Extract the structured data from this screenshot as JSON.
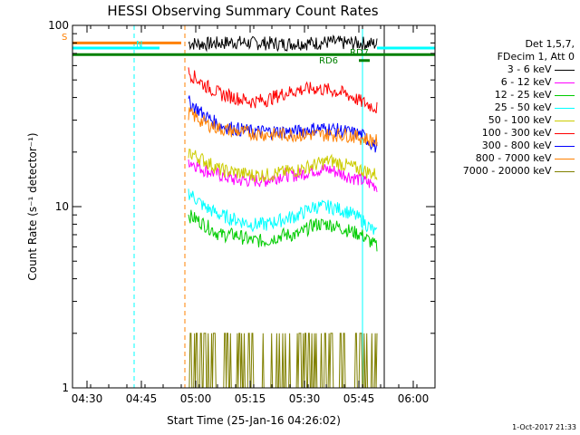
{
  "chart_data": {
    "type": "line",
    "title": "HESSI Observing Summary Count Rates",
    "xlabel": "Start Time (25-Jan-16 04:26:02)",
    "ylabel": "Count Rate (s⁻¹ detector⁻¹)",
    "yscale": "log",
    "ylim": [
      1,
      100
    ],
    "xlim_minutes": [
      "04:26",
      "06:06"
    ],
    "x_ticks": [
      "04:30",
      "04:45",
      "05:00",
      "05:15",
      "05:30",
      "05:45",
      "06:00"
    ],
    "y_ticks": [
      "1",
      "10",
      "100"
    ],
    "legend_header": [
      "Det 1,5,7,",
      "FDecim 1, Att 0"
    ],
    "series": [
      {
        "name": "3 - 6 keV",
        "color": "#000000",
        "start": "04:58",
        "end": "05:50",
        "values": [
          80,
          79,
          80,
          81,
          80,
          80,
          79,
          80,
          80,
          81,
          80,
          80,
          79
        ]
      },
      {
        "name": "6 - 12 keV",
        "color": "#ff00ff",
        "start": "04:58",
        "end": "05:50",
        "values": [
          18,
          16,
          15,
          14,
          14,
          14,
          15,
          15,
          16,
          16,
          15,
          14,
          13
        ]
      },
      {
        "name": "12 - 25 keV",
        "color": "#00cc00",
        "start": "04:58",
        "end": "05:50",
        "values": [
          9,
          8,
          7,
          7,
          6.5,
          6.5,
          7,
          7,
          8,
          8,
          7.5,
          7,
          6
        ]
      },
      {
        "name": "25 - 50 keV",
        "color": "#00ffff",
        "start": "04:58",
        "end": "05:50",
        "values": [
          12,
          10,
          9,
          8.5,
          8,
          8,
          8.5,
          9,
          10,
          10,
          9.5,
          8.5,
          7
        ]
      },
      {
        "name": "50 - 100 keV",
        "color": "#cccc00",
        "start": "04:58",
        "end": "05:50",
        "values": [
          20,
          18,
          16,
          15.5,
          15,
          15,
          15.5,
          16,
          17,
          18,
          17,
          16,
          15
        ]
      },
      {
        "name": "100 - 300 keV",
        "color": "#ff0000",
        "start": "04:58",
        "end": "05:50",
        "values": [
          55,
          47,
          42,
          40,
          38,
          39,
          42,
          44,
          45,
          44,
          42,
          38,
          35
        ]
      },
      {
        "name": "300 - 800 keV",
        "color": "#0000ff",
        "start": "04:58",
        "end": "05:50",
        "values": [
          38,
          32,
          28,
          27,
          26,
          26,
          26,
          26,
          27,
          27,
          26,
          25,
          21
        ]
      },
      {
        "name": "800 - 7000 keV",
        "color": "#ff8000",
        "start": "04:58",
        "end": "05:50",
        "values": [
          33,
          29,
          27,
          26,
          25.5,
          25,
          25,
          25,
          25,
          25,
          25,
          24,
          23
        ]
      },
      {
        "name": "7000 - 20000 keV",
        "color": "#808000",
        "start": "04:58",
        "end": "05:50",
        "values": [
          1.5,
          1.4,
          1,
          1,
          1,
          1,
          1.4,
          1.5,
          1.5,
          1.5,
          1.4,
          1.4,
          1.3
        ]
      }
    ],
    "annotations": [
      "S",
      "N",
      "RD6",
      "RD7"
    ],
    "timestamp": "1-Oct-2017 21:33"
  }
}
